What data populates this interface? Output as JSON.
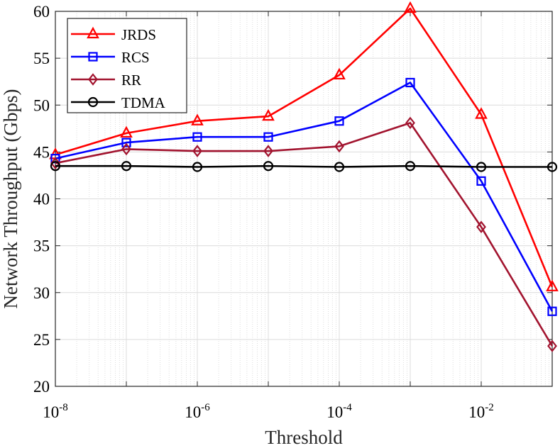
{
  "chart_data": {
    "type": "line",
    "title": "",
    "xlabel": "Threshold",
    "ylabel": "Network Throughput (Gbps)",
    "xscale": "log",
    "xlim": [
      1e-08,
      0.1
    ],
    "ylim": [
      20,
      60
    ],
    "x": [
      1e-08,
      1e-07,
      1e-06,
      1e-05,
      0.0001,
      0.001,
      0.01,
      0.1
    ],
    "xticks": [
      {
        "base": "10",
        "exp": "-8"
      },
      {
        "base": "10",
        "exp": "-6"
      },
      {
        "base": "10",
        "exp": "-4"
      },
      {
        "base": "10",
        "exp": "-2"
      }
    ],
    "yticks": [
      "20",
      "25",
      "30",
      "35",
      "40",
      "45",
      "50",
      "55",
      "60"
    ],
    "grid": true,
    "legend_position": "top-left",
    "series": [
      {
        "name": "JRDS",
        "color": "#ff0000",
        "marker": "triangle",
        "values": [
          44.7,
          47.0,
          48.3,
          48.8,
          53.2,
          60.3,
          49.0,
          30.6
        ]
      },
      {
        "name": "RCS",
        "color": "#0000ff",
        "marker": "square",
        "values": [
          44.3,
          46.0,
          46.6,
          46.6,
          48.3,
          52.4,
          41.9,
          28.0
        ]
      },
      {
        "name": "RR",
        "color": "#a2142f",
        "marker": "diamond",
        "values": [
          43.8,
          45.3,
          45.1,
          45.1,
          45.6,
          48.1,
          37.0,
          24.3
        ]
      },
      {
        "name": "TDMA",
        "color": "#000000",
        "marker": "circle",
        "values": [
          43.5,
          43.5,
          43.4,
          43.5,
          43.4,
          43.5,
          43.4,
          43.4
        ]
      }
    ]
  }
}
